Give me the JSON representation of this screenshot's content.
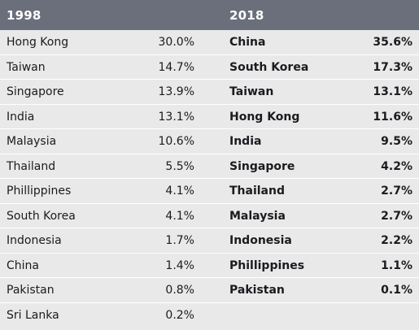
{
  "chart_data": {
    "type": "table",
    "columns": [
      "1998",
      "2018"
    ],
    "left": {
      "header": "1998",
      "rows": [
        {
          "name": "Hong Kong",
          "value": "30.0%"
        },
        {
          "name": "Taiwan",
          "value": "14.7%"
        },
        {
          "name": "Singapore",
          "value": "13.9%"
        },
        {
          "name": "India",
          "value": "13.1%"
        },
        {
          "name": "Malaysia",
          "value": "10.6%"
        },
        {
          "name": "Thailand",
          "value": "5.5%"
        },
        {
          "name": "Phillippines",
          "value": "4.1%"
        },
        {
          "name": "South Korea",
          "value": "4.1%"
        },
        {
          "name": "Indonesia",
          "value": "1.7%"
        },
        {
          "name": "China",
          "value": "1.4%"
        },
        {
          "name": "Pakistan",
          "value": "0.8%"
        },
        {
          "name": "Sri Lanka",
          "value": "0.2%"
        }
      ]
    },
    "right": {
      "header": "2018",
      "rows": [
        {
          "name": "China",
          "value": "35.6%"
        },
        {
          "name": "South Korea",
          "value": "17.3%"
        },
        {
          "name": "Taiwan",
          "value": "13.1%"
        },
        {
          "name": "Hong Kong",
          "value": "11.6%"
        },
        {
          "name": "India",
          "value": "9.5%"
        },
        {
          "name": "Singapore",
          "value": "4.2%"
        },
        {
          "name": "Thailand",
          "value": "2.7%"
        },
        {
          "name": "Malaysia",
          "value": "2.7%"
        },
        {
          "name": "Indonesia",
          "value": "2.2%"
        },
        {
          "name": "Phillippines",
          "value": "1.1%"
        },
        {
          "name": "Pakistan",
          "value": "0.1%"
        }
      ]
    },
    "colors": {
      "header_bg": "#6b6f7b",
      "header_text": "#ffffff",
      "body_bg": "#e9e9ea",
      "row_divider": "#ffffff",
      "body_text": "#1b1b1f"
    }
  }
}
